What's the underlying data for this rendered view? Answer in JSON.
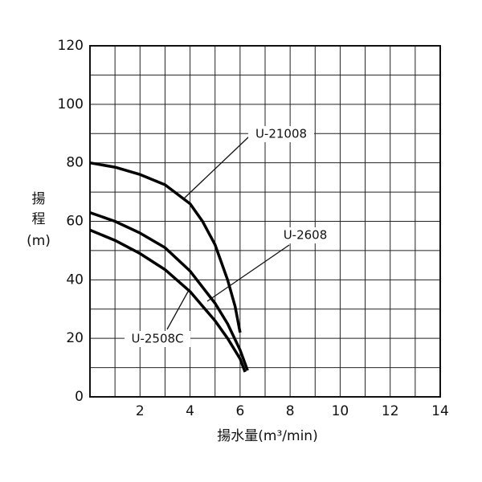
{
  "chart_data": {
    "type": "line",
    "x_label": "揚水量(m³/min)",
    "y_label": [
      "揚",
      "程",
      "(m)"
    ],
    "xlim": [
      0,
      14
    ],
    "xticks": [
      2,
      4,
      6,
      8,
      10,
      12,
      14
    ],
    "ylim": [
      0,
      120
    ],
    "yticks": [
      0,
      20,
      40,
      60,
      80,
      100,
      120
    ],
    "x_grid": [
      1,
      2,
      3,
      4,
      5,
      6,
      7,
      8,
      9,
      10,
      11,
      12,
      13
    ],
    "y_grid": [
      10,
      20,
      30,
      40,
      50,
      60,
      70,
      80,
      90,
      100,
      110
    ],
    "grid": true,
    "series": [
      {
        "name": "U-21008",
        "color": "#000000",
        "x": [
          0,
          1,
          2,
          3,
          4,
          4.5,
          5,
          5.5,
          5.8,
          6
        ],
        "values": [
          80,
          78.5,
          76,
          72.5,
          66,
          60,
          52,
          40,
          31,
          22
        ]
      },
      {
        "name": "U-2608",
        "color": "#000000",
        "x": [
          0,
          1,
          2,
          3,
          4,
          5,
          5.5,
          6,
          6.3
        ],
        "values": [
          63,
          60,
          56,
          51,
          43,
          32,
          25,
          16,
          9
        ]
      },
      {
        "name": "U-2508C",
        "color": "#000000",
        "x": [
          0,
          1,
          2,
          3,
          4,
          5,
          5.5,
          6,
          6.2
        ],
        "values": [
          57,
          53.5,
          49,
          43.5,
          36,
          26,
          20,
          13,
          8.5
        ]
      }
    ]
  }
}
